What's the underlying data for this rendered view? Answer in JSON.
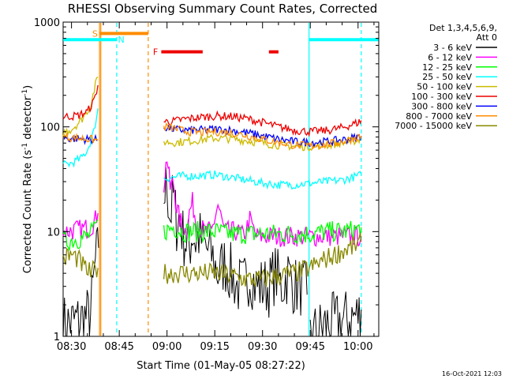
{
  "chart_data": {
    "type": "line",
    "title": "RHESSI Observing Summary Count Rates, Corrected",
    "xlabel": "Start Time (01-May-05 08:27:22)",
    "ylabel_main": "Corrected Count Rate (s",
    "ylabel_exp1": "-1",
    "ylabel_mid": " detector",
    "ylabel_exp2": "-1",
    "ylabel_end": ")",
    "timestamp": "16-Oct-2021 12:03",
    "yscale": "log",
    "ylim": [
      1,
      1000
    ],
    "xlim": [
      27.37,
      126.5
    ],
    "x_unit": "minutes after 08:00 UT",
    "x_ticks": [
      {
        "value": 30,
        "label": "08:30"
      },
      {
        "value": 45,
        "label": "08:45"
      },
      {
        "value": 60,
        "label": "09:00"
      },
      {
        "value": 75,
        "label": "09:15"
      },
      {
        "value": 90,
        "label": "09:30"
      },
      {
        "value": 105,
        "label": "09:45"
      },
      {
        "value": 120,
        "label": "10:00"
      }
    ],
    "y_ticks": [
      {
        "value": 1,
        "label": "1"
      },
      {
        "value": 10,
        "label": "10"
      },
      {
        "value": 100,
        "label": "100"
      },
      {
        "value": 1000,
        "label": "1000"
      }
    ],
    "legend": {
      "placement": "right",
      "header_line1": "Det 1,3,4,5,6,9,",
      "header_line2": "Att 0",
      "entries": [
        {
          "label": "3 - 6 keV",
          "color": "#000000"
        },
        {
          "label": "6 - 12 keV",
          "color": "#ff00ff"
        },
        {
          "label": "12 - 25 keV",
          "color": "#00ff00"
        },
        {
          "label": "25 - 50 keV",
          "color": "#00ffff"
        },
        {
          "label": "50 - 100 keV",
          "color": "#ccbb00"
        },
        {
          "label": "100 - 300 keV",
          "color": "#ee0000"
        },
        {
          "label": "300 - 800 keV",
          "color": "#0000ff"
        },
        {
          "label": "800 - 7000 keV",
          "color": "#ff8c00"
        },
        {
          "label": "7000 - 15000 keV",
          "color": "#888800"
        }
      ]
    },
    "series": [
      {
        "name": "3 - 6 keV",
        "color": "#000000",
        "segments": [
          [
            [
              27.4,
              1.3
            ],
            [
              32,
              1.4
            ],
            [
              36,
              1.6
            ],
            [
              37.5,
              5
            ],
            [
              38.5,
              7
            ]
          ],
          [
            [
              59,
              22
            ],
            [
              60,
              28
            ],
            [
              61,
              14
            ],
            [
              62,
              22
            ],
            [
              63,
              12
            ],
            [
              64,
              14
            ],
            [
              65,
              9
            ],
            [
              66,
              8
            ],
            [
              67,
              7
            ],
            [
              68,
              10
            ],
            [
              69,
              8
            ],
            [
              70,
              9
            ],
            [
              72,
              7
            ],
            [
              74,
              6
            ],
            [
              76,
              4
            ],
            [
              78,
              5
            ],
            [
              80,
              4
            ],
            [
              82,
              3
            ],
            [
              84,
              3
            ],
            [
              86,
              4
            ],
            [
              88,
              3
            ],
            [
              90,
              3
            ],
            [
              92,
              3
            ],
            [
              94,
              4
            ],
            [
              96,
              3
            ],
            [
              98,
              4
            ],
            [
              100,
              3
            ],
            [
              102,
              3
            ],
            [
              104,
              2.5
            ]
          ],
          [
            [
              105,
              1
            ],
            [
              110,
              1.3
            ],
            [
              115,
              1.4
            ],
            [
              120,
              1.6
            ],
            [
              121,
              1.8
            ]
          ]
        ]
      },
      {
        "name": "6 - 12 keV",
        "color": "#ff00ff",
        "segments": [
          [
            [
              27.4,
              10
            ],
            [
              33,
              10.5
            ],
            [
              36,
              11
            ],
            [
              37.5,
              13
            ],
            [
              38.3,
              15
            ]
          ],
          [
            [
              59,
              28
            ],
            [
              60,
              52
            ],
            [
              61,
              26
            ],
            [
              62,
              30
            ],
            [
              63,
              17
            ],
            [
              64,
              13
            ],
            [
              65,
              11
            ],
            [
              66,
              10
            ],
            [
              67,
              15
            ],
            [
              68,
              19
            ],
            [
              69,
              13
            ],
            [
              70,
              11
            ],
            [
              72,
              10
            ],
            [
              74,
              10
            ],
            [
              76,
              18
            ],
            [
              78,
              10
            ],
            [
              80,
              10
            ],
            [
              82,
              10
            ],
            [
              84,
              9
            ],
            [
              86,
              13
            ],
            [
              88,
              9
            ],
            [
              90,
              9
            ],
            [
              92,
              9
            ],
            [
              94,
              9
            ],
            [
              96,
              9
            ],
            [
              98,
              9
            ],
            [
              100,
              9
            ],
            [
              102,
              9
            ],
            [
              104,
              9
            ],
            [
              106,
              9
            ],
            [
              108,
              9
            ],
            [
              110,
              9
            ],
            [
              112,
              9
            ],
            [
              114,
              9
            ],
            [
              116,
              9
            ],
            [
              118,
              9
            ],
            [
              120,
              9
            ],
            [
              121,
              9
            ]
          ]
        ]
      },
      {
        "name": "12 - 25 keV",
        "color": "#00ff00",
        "segments": [
          [
            [
              27.4,
              8
            ],
            [
              32,
              8.5
            ],
            [
              35,
              9
            ],
            [
              37,
              10
            ],
            [
              38.3,
              13
            ]
          ],
          [
            [
              59,
              10
            ],
            [
              62,
              11
            ],
            [
              65,
              10
            ],
            [
              70,
              10
            ],
            [
              75,
              10
            ],
            [
              80,
              9.5
            ],
            [
              85,
              9.5
            ],
            [
              90,
              9.5
            ],
            [
              95,
              9.5
            ],
            [
              100,
              9.5
            ],
            [
              105,
              9.5
            ],
            [
              110,
              10
            ],
            [
              115,
              10
            ],
            [
              120,
              10.5
            ],
            [
              121,
              11
            ]
          ]
        ]
      },
      {
        "name": "25 - 50 keV",
        "color": "#00ffff",
        "segments": [
          [
            [
              27.4,
              43
            ],
            [
              30,
              45
            ],
            [
              33,
              50
            ],
            [
              35,
              60
            ],
            [
              37,
              90
            ],
            [
              38.3,
              150
            ]
          ],
          [
            [
              59,
              32
            ],
            [
              62,
              33
            ],
            [
              65,
              34
            ],
            [
              70,
              34
            ],
            [
              75,
              35
            ],
            [
              80,
              33
            ],
            [
              85,
              31
            ],
            [
              90,
              29
            ],
            [
              95,
              28
            ],
            [
              100,
              28
            ],
            [
              105,
              29
            ],
            [
              110,
              30
            ],
            [
              115,
              31
            ],
            [
              120,
              34
            ],
            [
              121,
              35
            ]
          ]
        ]
      },
      {
        "name": "50 - 100 keV",
        "color": "#ccbb00",
        "segments": [
          [
            [
              27.4,
              88
            ],
            [
              30,
              95
            ],
            [
              33,
              115
            ],
            [
              36,
              160
            ],
            [
              37.5,
              250
            ],
            [
              38.3,
              300
            ]
          ],
          [
            [
              59,
              72
            ],
            [
              62,
              71
            ],
            [
              65,
              72
            ],
            [
              70,
              75
            ],
            [
              75,
              78
            ],
            [
              80,
              77
            ],
            [
              85,
              74
            ],
            [
              90,
              70
            ],
            [
              95,
              67
            ],
            [
              100,
              65
            ],
            [
              105,
              65
            ],
            [
              110,
              67
            ],
            [
              115,
              70
            ],
            [
              120,
              75
            ],
            [
              121,
              78
            ]
          ]
        ]
      },
      {
        "name": "100 - 300 keV",
        "color": "#ee0000",
        "segments": [
          [
            [
              27.4,
              125
            ],
            [
              32,
              128
            ],
            [
              35,
              140
            ],
            [
              37,
              175
            ],
            [
              38.3,
              250
            ]
          ],
          [
            [
              59,
              112
            ],
            [
              62,
              113
            ],
            [
              65,
              118
            ],
            [
              70,
              123
            ],
            [
              75,
              127
            ],
            [
              80,
              126
            ],
            [
              85,
              120
            ],
            [
              90,
              110
            ],
            [
              95,
              100
            ],
            [
              100,
              93
            ],
            [
              105,
              90
            ],
            [
              110,
              92
            ],
            [
              115,
              98
            ],
            [
              120,
              110
            ],
            [
              121,
              115
            ]
          ]
        ]
      },
      {
        "name": "300 - 800 keV",
        "color": "#0000ff",
        "segments": [
          [
            [
              27.4,
              78
            ],
            [
              32,
              77
            ],
            [
              36,
              76
            ],
            [
              38.3,
              75
            ]
          ],
          [
            [
              59,
              100
            ],
            [
              62,
              95
            ],
            [
              65,
              93
            ],
            [
              70,
              93
            ],
            [
              75,
              95
            ],
            [
              80,
              93
            ],
            [
              85,
              88
            ],
            [
              90,
              82
            ],
            [
              95,
              76
            ],
            [
              100,
              72
            ],
            [
              105,
              71
            ],
            [
              110,
              72
            ],
            [
              115,
              75
            ],
            [
              120,
              80
            ],
            [
              121,
              82
            ]
          ]
        ]
      },
      {
        "name": "800 - 7000 keV",
        "color": "#ff8c00",
        "segments": [
          [
            [
              27.4,
              80
            ],
            [
              32,
              78
            ],
            [
              36,
              76
            ],
            [
              38.3,
              74
            ]
          ],
          [
            [
              59,
              100
            ],
            [
              62,
              97
            ],
            [
              65,
              92
            ],
            [
              70,
              88
            ],
            [
              75,
              90
            ],
            [
              80,
              88
            ],
            [
              85,
              83
            ],
            [
              90,
              76
            ],
            [
              95,
              71
            ],
            [
              100,
              67
            ],
            [
              105,
              66
            ],
            [
              110,
              68
            ],
            [
              115,
              72
            ],
            [
              120,
              80
            ],
            [
              121,
              82
            ]
          ]
        ]
      },
      {
        "name": "7000 - 15000 keV",
        "color": "#888800",
        "segments": [
          [
            [
              27.4,
              5.5
            ],
            [
              30,
              6
            ],
            [
              32,
              5.5
            ],
            [
              34,
              4.5
            ],
            [
              36,
              4
            ],
            [
              38.3,
              4.5
            ]
          ],
          [
            [
              59,
              4
            ],
            [
              62,
              4
            ],
            [
              65,
              4
            ],
            [
              70,
              4
            ],
            [
              75,
              4
            ],
            [
              80,
              3.8
            ],
            [
              85,
              3.5
            ],
            [
              90,
              3.5
            ],
            [
              95,
              3.8
            ],
            [
              100,
              4
            ],
            [
              105,
              4.5
            ],
            [
              110,
              5.5
            ],
            [
              115,
              6.5
            ],
            [
              120,
              7.5
            ],
            [
              121,
              8
            ]
          ]
        ]
      }
    ],
    "vertical_markers": [
      {
        "x": 38.8,
        "style": "solid",
        "color": "#ff8c00"
      },
      {
        "x": 39.2,
        "style": "solid",
        "color": "#ff8c00"
      },
      {
        "x": 44.2,
        "style": "dashed",
        "color": "#00ffff"
      },
      {
        "x": 54.1,
        "style": "dashed",
        "color": "#ff8c00"
      },
      {
        "x": 104.6,
        "style": "solid",
        "color": "#00ffff"
      },
      {
        "x": 121.0,
        "style": "dashed",
        "color": "#00ffff"
      }
    ],
    "flag_bars": [
      {
        "label": "S",
        "color": "#ff8c00",
        "x1": 38.8,
        "x2": 54.1,
        "y": 780,
        "label_x": 36.5
      },
      {
        "label": "N",
        "color": "#00ffff",
        "x1": 27.4,
        "x2": 44.2,
        "y": 680,
        "label_x": 44.6
      },
      {
        "label": "",
        "color": "#00ffff",
        "x1": 104.6,
        "x2": 126.4,
        "y": 680,
        "label_x": null
      },
      {
        "label": "F",
        "color": "#ee0000",
        "x1": 58.2,
        "x2": 71.2,
        "y": 520,
        "label_x": 55.6
      },
      {
        "label": "",
        "color": "#ee0000",
        "x1": 92.0,
        "x2": 95.0,
        "y": 520,
        "label_x": null
      }
    ]
  }
}
